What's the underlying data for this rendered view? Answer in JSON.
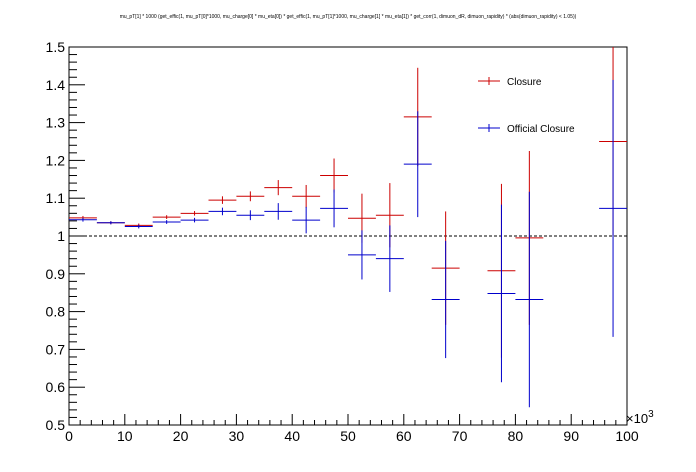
{
  "chart_data": {
    "type": "scatter",
    "title": "mu_pT[1] * 1000 (get_effic(1, mu_pT[0]*1000, mu_charge[0] * mu_eta[0]) * get_effic(1, mu_pT[1]*1000, mu_charge[1] * mu_eta[1]) * get_corr(1, dimuon_dR, dimuon_rapidity) * (abs(dimuon_rapidity) < 1.05))",
    "x_axis": {
      "range": [
        0,
        100
      ],
      "exponent_label": "×10",
      "exponent_power": "3",
      "ticks": [
        "0",
        "10",
        "20",
        "30",
        "40",
        "50",
        "60",
        "70",
        "80",
        "90",
        "100"
      ]
    },
    "y_axis": {
      "range": [
        0.5,
        1.5
      ],
      "ticks": [
        "0.5",
        "0.6",
        "0.7",
        "0.8",
        "0.9",
        "1",
        "1.1",
        "1.2",
        "1.3",
        "1.4",
        "1.5"
      ]
    },
    "reference_line": {
      "y": 1.0,
      "style": "dashed",
      "color": "#000000"
    },
    "legend": {
      "placement": "top-right",
      "entries": [
        {
          "label": "Closure",
          "color": "#cc0000"
        },
        {
          "label": "Official Closure",
          "color": "#0000cc"
        }
      ]
    },
    "series": [
      {
        "name": "Closure",
        "color": "#cc0000",
        "points": [
          {
            "x": 2.5,
            "y": 1.048,
            "err": 0.005,
            "hw": 2.5
          },
          {
            "x": 7.5,
            "y": 1.035,
            "err": 0.004,
            "hw": 2.5
          },
          {
            "x": 12.5,
            "y": 1.028,
            "err": 0.005,
            "hw": 2.5
          },
          {
            "x": 17.5,
            "y": 1.05,
            "err": 0.005,
            "hw": 2.5
          },
          {
            "x": 22.5,
            "y": 1.06,
            "err": 0.006,
            "hw": 2.5
          },
          {
            "x": 27.5,
            "y": 1.095,
            "err": 0.01,
            "hw": 2.5
          },
          {
            "x": 32.5,
            "y": 1.105,
            "err": 0.013,
            "hw": 2.5
          },
          {
            "x": 37.5,
            "y": 1.128,
            "err": 0.02,
            "hw": 2.5
          },
          {
            "x": 42.5,
            "y": 1.105,
            "err": 0.03,
            "hw": 2.5
          },
          {
            "x": 47.5,
            "y": 1.16,
            "err": 0.045,
            "hw": 2.5
          },
          {
            "x": 52.5,
            "y": 1.047,
            "err": 0.065,
            "hw": 2.5
          },
          {
            "x": 57.5,
            "y": 1.055,
            "err": 0.085,
            "hw": 2.5
          },
          {
            "x": 62.5,
            "y": 1.315,
            "err": 0.13,
            "hw": 2.5
          },
          {
            "x": 67.5,
            "y": 0.915,
            "err": 0.15,
            "hw": 2.5
          },
          {
            "x": 77.5,
            "y": 0.908,
            "err": 0.23,
            "hw": 2.5
          },
          {
            "x": 82.5,
            "y": 0.995,
            "err": 0.23,
            "hw": 2.5
          },
          {
            "x": 97.5,
            "y": 1.25,
            "err": 0.25,
            "hw": 2.5
          }
        ]
      },
      {
        "name": "Official Closure",
        "color": "#0000cc",
        "points": [
          {
            "x": 2.5,
            "y": 1.043,
            "err": 0.005,
            "hw": 2.5
          },
          {
            "x": 7.5,
            "y": 1.035,
            "err": 0.004,
            "hw": 2.5
          },
          {
            "x": 12.5,
            "y": 1.025,
            "err": 0.005,
            "hw": 2.5
          },
          {
            "x": 17.5,
            "y": 1.037,
            "err": 0.005,
            "hw": 2.5
          },
          {
            "x": 22.5,
            "y": 1.042,
            "err": 0.006,
            "hw": 2.5
          },
          {
            "x": 27.5,
            "y": 1.065,
            "err": 0.01,
            "hw": 2.5
          },
          {
            "x": 32.5,
            "y": 1.055,
            "err": 0.013,
            "hw": 2.5
          },
          {
            "x": 37.5,
            "y": 1.065,
            "err": 0.022,
            "hw": 2.5
          },
          {
            "x": 42.5,
            "y": 1.042,
            "err": 0.035,
            "hw": 2.5
          },
          {
            "x": 47.5,
            "y": 1.073,
            "err": 0.05,
            "hw": 2.5
          },
          {
            "x": 52.5,
            "y": 0.95,
            "err": 0.065,
            "hw": 2.5
          },
          {
            "x": 57.5,
            "y": 0.94,
            "err": 0.088,
            "hw": 2.5
          },
          {
            "x": 62.5,
            "y": 1.19,
            "err": 0.14,
            "hw": 2.5
          },
          {
            "x": 67.5,
            "y": 0.832,
            "err": 0.155,
            "hw": 2.5
          },
          {
            "x": 77.5,
            "y": 0.848,
            "err": 0.235,
            "hw": 2.5
          },
          {
            "x": 82.5,
            "y": 0.832,
            "err": 0.285,
            "hw": 2.5
          },
          {
            "x": 97.5,
            "y": 1.073,
            "err": 0.34,
            "hw": 2.5
          }
        ]
      }
    ]
  }
}
